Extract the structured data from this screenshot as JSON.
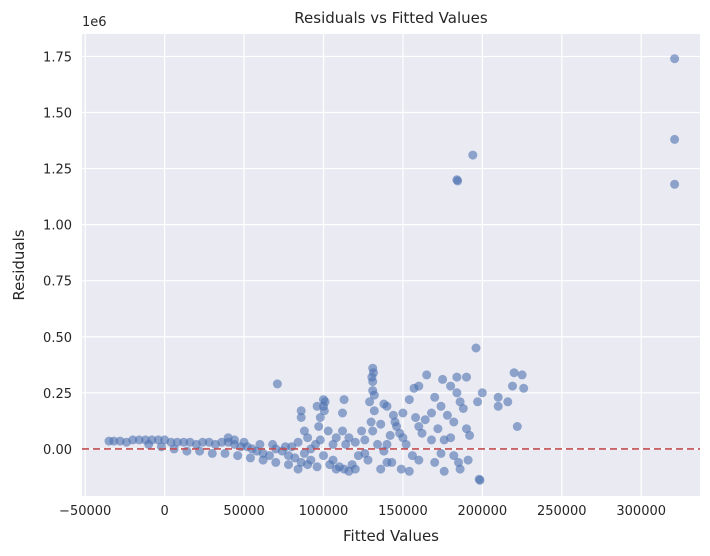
{
  "chart_data": {
    "type": "scatter",
    "title": "Residuals vs Fitted Values",
    "xlabel": "Fitted Values",
    "ylabel": "Residuals",
    "y_offset_label": "1e6",
    "xlim": [
      -52000,
      337000
    ],
    "ylim": [
      -0.21,
      1.85
    ],
    "x_ticks": [
      -50000,
      0,
      50000,
      100000,
      150000,
      200000,
      250000,
      300000
    ],
    "x_tick_labels": [
      "−50000",
      "0",
      "50000",
      "100000",
      "150000",
      "200000",
      "250000",
      "300000"
    ],
    "y_ticks": [
      0.0,
      0.25,
      0.5,
      0.75,
      1.0,
      1.25,
      1.5,
      1.75
    ],
    "y_tick_labels": [
      "0.00",
      "0.25",
      "0.50",
      "0.75",
      "1.00",
      "1.25",
      "1.50",
      "1.75"
    ],
    "grid": true,
    "reference_line": {
      "y": 0,
      "style": "dashed",
      "color": "#c44e52"
    },
    "point_color": "#4c72b0",
    "points": [
      [
        321000,
        1.74
      ],
      [
        321000,
        1.38
      ],
      [
        321000,
        1.18
      ],
      [
        194000,
        1.31
      ],
      [
        184000,
        1.2
      ],
      [
        184500,
        1.195
      ],
      [
        196000,
        0.45
      ],
      [
        71000,
        0.29
      ],
      [
        225000,
        0.33
      ],
      [
        226000,
        0.27
      ],
      [
        220000,
        0.34
      ],
      [
        219000,
        0.28
      ],
      [
        200000,
        0.25
      ],
      [
        197000,
        0.21
      ],
      [
        210000,
        0.23
      ],
      [
        210000,
        0.19
      ],
      [
        216000,
        0.21
      ],
      [
        222000,
        0.1
      ],
      [
        198000,
        -0.135
      ],
      [
        198500,
        -0.14
      ],
      [
        176000,
        -0.1
      ],
      [
        186000,
        -0.09
      ],
      [
        185000,
        -0.06
      ],
      [
        191000,
        -0.05
      ],
      [
        184000,
        0.32
      ],
      [
        190000,
        0.32
      ],
      [
        175000,
        0.31
      ],
      [
        180000,
        0.28
      ],
      [
        184000,
        0.25
      ],
      [
        186000,
        0.21
      ],
      [
        165000,
        0.33
      ],
      [
        160000,
        0.28
      ],
      [
        170000,
        0.23
      ],
      [
        174000,
        0.19
      ],
      [
        168000,
        0.16
      ],
      [
        178000,
        0.15
      ],
      [
        188000,
        0.18
      ],
      [
        182000,
        0.12
      ],
      [
        157000,
        0.27
      ],
      [
        154000,
        0.22
      ],
      [
        150000,
        0.16
      ],
      [
        158000,
        0.14
      ],
      [
        145000,
        0.12
      ],
      [
        148000,
        0.07
      ],
      [
        152000,
        0.02
      ],
      [
        156000,
        -0.03
      ],
      [
        160000,
        -0.05
      ],
      [
        149000,
        -0.09
      ],
      [
        154000,
        -0.1
      ],
      [
        143000,
        -0.06
      ],
      [
        162000,
        0.07
      ],
      [
        168000,
        0.04
      ],
      [
        172000,
        0.09
      ],
      [
        176000,
        0.04
      ],
      [
        131000,
        0.36
      ],
      [
        131500,
        0.34
      ],
      [
        130500,
        0.32
      ],
      [
        131000,
        0.3
      ],
      [
        131000,
        0.26
      ],
      [
        132000,
        0.24
      ],
      [
        129000,
        0.21
      ],
      [
        132000,
        0.17
      ],
      [
        130000,
        0.12
      ],
      [
        131000,
        0.08
      ],
      [
        138000,
        0.2
      ],
      [
        140000,
        0.19
      ],
      [
        136000,
        0.11
      ],
      [
        142000,
        0.06
      ],
      [
        134000,
        0.02
      ],
      [
        138000,
        -0.01
      ],
      [
        140000,
        -0.06
      ],
      [
        136000,
        -0.09
      ],
      [
        128000,
        -0.05
      ],
      [
        126000,
        0.04
      ],
      [
        124000,
        0.08
      ],
      [
        120000,
        0.03
      ],
      [
        122000,
        -0.03
      ],
      [
        118000,
        -0.07
      ],
      [
        113000,
        -0.09
      ],
      [
        110000,
        -0.08
      ],
      [
        114000,
        0.02
      ],
      [
        112000,
        0.16
      ],
      [
        113000,
        0.22
      ],
      [
        112000,
        0.08
      ],
      [
        108000,
        0.05
      ],
      [
        106000,
        0.02
      ],
      [
        100000,
        0.22
      ],
      [
        101000,
        0.21
      ],
      [
        100000,
        0.19
      ],
      [
        100500,
        0.17
      ],
      [
        98000,
        0.14
      ],
      [
        96000,
        0.19
      ],
      [
        97000,
        0.1
      ],
      [
        103000,
        0.08
      ],
      [
        98000,
        0.04
      ],
      [
        95000,
        0.02
      ],
      [
        92000,
        0.0
      ],
      [
        100000,
        -0.03
      ],
      [
        104000,
        -0.07
      ],
      [
        108000,
        -0.09
      ],
      [
        116000,
        -0.1
      ],
      [
        120000,
        -0.09
      ],
      [
        86000,
        0.17
      ],
      [
        86000,
        0.14
      ],
      [
        88000,
        0.08
      ],
      [
        90000,
        0.05
      ],
      [
        84000,
        0.03
      ],
      [
        80000,
        0.01
      ],
      [
        88000,
        -0.02
      ],
      [
        92000,
        -0.05
      ],
      [
        96000,
        -0.08
      ],
      [
        86000,
        -0.06
      ],
      [
        82000,
        -0.04
      ],
      [
        78000,
        -0.03
      ],
      [
        74000,
        -0.01
      ],
      [
        76000,
        0.01
      ],
      [
        70000,
        0.0
      ],
      [
        66000,
        -0.03
      ],
      [
        62000,
        -0.02
      ],
      [
        58000,
        -0.01
      ],
      [
        55000,
        0.0
      ],
      [
        52000,
        0.01
      ],
      [
        48000,
        0.01
      ],
      [
        44000,
        0.02
      ],
      [
        40000,
        0.03
      ],
      [
        36000,
        0.03
      ],
      [
        32000,
        0.02
      ],
      [
        28000,
        0.03
      ],
      [
        24000,
        0.03
      ],
      [
        20000,
        0.02
      ],
      [
        16000,
        0.03
      ],
      [
        12000,
        0.03
      ],
      [
        8000,
        0.03
      ],
      [
        4000,
        0.03
      ],
      [
        0,
        0.04
      ],
      [
        -4000,
        0.04
      ],
      [
        -8000,
        0.04
      ],
      [
        -12000,
        0.04
      ],
      [
        -16000,
        0.04
      ],
      [
        -20000,
        0.04
      ],
      [
        -24000,
        0.03
      ],
      [
        -28000,
        0.035
      ],
      [
        -32000,
        0.035
      ],
      [
        -35000,
        0.035
      ],
      [
        -10000,
        0.02
      ],
      [
        -2000,
        0.01
      ],
      [
        6000,
        0.0
      ],
      [
        14000,
        -0.01
      ],
      [
        22000,
        -0.01
      ],
      [
        30000,
        -0.02
      ],
      [
        38000,
        -0.02
      ],
      [
        46000,
        -0.03
      ],
      [
        54000,
        -0.04
      ],
      [
        62000,
        -0.05
      ],
      [
        70000,
        -0.06
      ],
      [
        78000,
        -0.07
      ],
      [
        84000,
        -0.09
      ],
      [
        90000,
        -0.07
      ],
      [
        44000,
        0.04
      ],
      [
        40000,
        0.05
      ],
      [
        50000,
        0.03
      ],
      [
        60000,
        0.02
      ],
      [
        68000,
        0.02
      ],
      [
        160000,
        0.1
      ],
      [
        164000,
        0.13
      ],
      [
        150000,
        0.05
      ],
      [
        146000,
        0.1
      ],
      [
        144000,
        0.15
      ],
      [
        190000,
        0.09
      ],
      [
        192000,
        0.06
      ],
      [
        180000,
        0.05
      ],
      [
        174000,
        -0.02
      ],
      [
        182000,
        -0.03
      ],
      [
        170000,
        -0.06
      ],
      [
        140000,
        0.02
      ],
      [
        126000,
        -0.02
      ],
      [
        116000,
        0.05
      ],
      [
        106000,
        -0.05
      ]
    ]
  }
}
